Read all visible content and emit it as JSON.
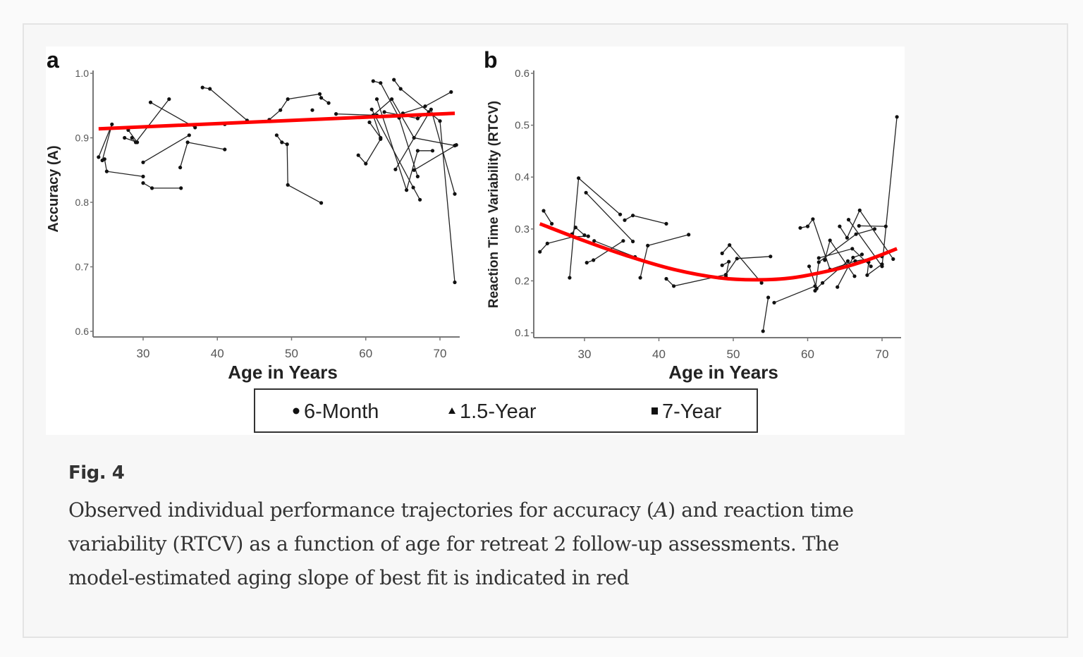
{
  "caption": {
    "title": "Fig. 4",
    "text_parts": [
      "Observed individual performance trajectories for accuracy (",
      "A",
      ") and reaction time variability (RTCV) as a function of age for retreat 2 follow-up assessments. The model-estimated aging slope of best fit is indicated in red"
    ]
  },
  "legend": {
    "items": [
      {
        "marker": "circle",
        "label": "6-Month"
      },
      {
        "marker": "triangle",
        "label": "1.5-Year"
      },
      {
        "marker": "square",
        "label": "7-Year"
      }
    ]
  },
  "colors": {
    "fit": "#ff0000",
    "trajectory": "#222222",
    "axis": "#777777"
  },
  "chart_data": [
    {
      "type": "line",
      "panel_label": "a",
      "title": "",
      "xlabel": "Age in Years",
      "ylabel": "Accuracy (A)",
      "xlim": [
        23.5,
        73
      ],
      "ylim": [
        0.59,
        1.0
      ],
      "xticks": [
        30,
        40,
        50,
        60,
        70
      ],
      "yticks": [
        0.6,
        0.7,
        0.8,
        0.9,
        1.0
      ],
      "ytick_labels": [
        "0.6",
        "0.7",
        "0.8",
        "0.9",
        "1.0"
      ],
      "grid": false,
      "fit_line": {
        "x": [
          24,
          72
        ],
        "y": [
          0.914,
          0.938
        ]
      },
      "trajectories": [
        {
          "x": [
            24.5,
            25.8,
            24.0
          ],
          "y": [
            0.865,
            0.921,
            0.87
          ]
        },
        {
          "x": [
            24.8,
            25.1,
            30.0
          ],
          "y": [
            0.867,
            0.848,
            0.84
          ]
        },
        {
          "x": [
            30.0,
            31.2,
            35.1
          ],
          "y": [
            0.83,
            0.822,
            0.822
          ]
        },
        {
          "x": [
            28.0,
            29.2,
            27.5
          ],
          "y": [
            0.912,
            0.893,
            0.9
          ]
        },
        {
          "x": [
            28.5,
            29.0,
            33.5
          ],
          "y": [
            0.9,
            0.893,
            0.96
          ]
        },
        {
          "x": [
            31.0,
            37.0
          ],
          "y": [
            0.955,
            0.916
          ]
        },
        {
          "x": [
            30.0,
            36.2
          ],
          "y": [
            0.862,
            0.904
          ]
        },
        {
          "x": [
            35.0,
            36.0,
            41.0
          ],
          "y": [
            0.854,
            0.893,
            0.882
          ]
        },
        {
          "x": [
            38.0,
            39.0,
            44.0
          ],
          "y": [
            0.978,
            0.976,
            0.927
          ]
        },
        {
          "x": [
            41.0
          ],
          "y": [
            0.921
          ]
        },
        {
          "x": [
            47.0,
            48.5,
            49.5,
            53.8,
            54.0,
            55.0
          ],
          "y": [
            0.928,
            0.943,
            0.96,
            0.968,
            0.962,
            0.954
          ]
        },
        {
          "x": [
            52.8
          ],
          "y": [
            0.943
          ]
        },
        {
          "x": [
            48.0,
            48.7,
            49.4,
            49.5,
            54.0
          ],
          "y": [
            0.904,
            0.893,
            0.89,
            0.827,
            0.799
          ]
        },
        {
          "x": [
            56.0,
            61.5
          ],
          "y": [
            0.937,
            0.935
          ]
        },
        {
          "x": [
            59.0,
            60.0,
            62.0
          ],
          "y": [
            0.873,
            0.86,
            0.898
          ]
        },
        {
          "x": [
            60.5,
            62.0,
            61.0,
            63.5,
            66.5,
            72.0
          ],
          "y": [
            0.924,
            0.9,
            0.935,
            0.96,
            0.9,
            0.888
          ]
        },
        {
          "x": [
            61.0,
            62.0,
            64.5,
            67.0
          ],
          "y": [
            0.988,
            0.985,
            0.931,
            0.84
          ]
        },
        {
          "x": [
            61.5,
            65.5,
            67.0,
            69.0
          ],
          "y": [
            0.96,
            0.819,
            0.88,
            0.88
          ]
        },
        {
          "x": [
            63.8,
            64.7,
            70.0,
            72.0
          ],
          "y": [
            0.99,
            0.976,
            0.926,
            0.676
          ]
        },
        {
          "x": [
            65.0,
            68.0,
            71.5
          ],
          "y": [
            0.938,
            0.949,
            0.971
          ]
        },
        {
          "x": [
            60.8,
            66.4,
            67.3
          ],
          "y": [
            0.944,
            0.823,
            0.804
          ]
        },
        {
          "x": [
            64.0,
            68.8,
            72.0
          ],
          "y": [
            0.851,
            0.944,
            0.813
          ]
        },
        {
          "x": [
            62.5,
            67.0,
            68.5
          ],
          "y": [
            0.94,
            0.93,
            0.94
          ]
        },
        {
          "x": [
            66.5,
            72.2
          ],
          "y": [
            0.85,
            0.889
          ]
        }
      ]
    },
    {
      "type": "line",
      "panel_label": "b",
      "title": "",
      "xlabel": "Age in Years",
      "ylabel": "Reaction Time Variability (RTCV)",
      "xlim": [
        23.5,
        72.5
      ],
      "ylim": [
        0.09,
        0.6
      ],
      "xticks": [
        30,
        40,
        50,
        60,
        70
      ],
      "yticks": [
        0.1,
        0.2,
        0.3,
        0.4,
        0.5,
        0.6
      ],
      "ytick_labels": [
        "0.1",
        "0.2",
        "0.3",
        "0.4",
        "0.5",
        "0.6"
      ],
      "grid": false,
      "fit_curve": {
        "x": [
          24,
          30,
          36,
          42,
          48,
          53,
          58,
          64,
          68,
          72
        ],
        "y": [
          0.31,
          0.277,
          0.247,
          0.222,
          0.206,
          0.202,
          0.206,
          0.223,
          0.24,
          0.262
        ]
      },
      "trajectories": [
        {
          "x": [
            24.0,
            25.0,
            28.5,
            30.5
          ],
          "y": [
            0.256,
            0.272,
            0.285,
            0.286
          ]
        },
        {
          "x": [
            24.5,
            25.6
          ],
          "y": [
            0.335,
            0.31
          ]
        },
        {
          "x": [
            28.3,
            28.8,
            30.0
          ],
          "y": [
            0.29,
            0.303,
            0.288
          ]
        },
        {
          "x": [
            28.0,
            29.2,
            34.8
          ],
          "y": [
            0.206,
            0.398,
            0.328
          ]
        },
        {
          "x": [
            30.2,
            36.5
          ],
          "y": [
            0.37,
            0.276
          ]
        },
        {
          "x": [
            30.3,
            31.2,
            35.2
          ],
          "y": [
            0.235,
            0.24,
            0.277
          ]
        },
        {
          "x": [
            31.3,
            36.8
          ],
          "y": [
            0.277,
            0.246
          ]
        },
        {
          "x": [
            35.4,
            36.5,
            41.0
          ],
          "y": [
            0.317,
            0.326,
            0.31
          ]
        },
        {
          "x": [
            37.5,
            38.5,
            44.0
          ],
          "y": [
            0.206,
            0.268,
            0.289
          ]
        },
        {
          "x": [
            41.0,
            42.0,
            49.0,
            50.5,
            55.0
          ],
          "y": [
            0.204,
            0.19,
            0.212,
            0.243,
            0.247
          ]
        },
        {
          "x": [
            48.5,
            49.5,
            53.8
          ],
          "y": [
            0.253,
            0.269,
            0.196
          ]
        },
        {
          "x": [
            48.5,
            49.4,
            49.0
          ],
          "y": [
            0.23,
            0.237,
            0.208
          ]
        },
        {
          "x": [
            54.0,
            54.7
          ],
          "y": [
            0.103,
            0.168
          ]
        },
        {
          "x": [
            55.5,
            61.0
          ],
          "y": [
            0.158,
            0.19
          ]
        },
        {
          "x": [
            59.0,
            60.0,
            60.7,
            63.0,
            66.4,
            70.0
          ],
          "y": [
            0.302,
            0.305,
            0.319,
            0.222,
            0.238,
            0.247
          ]
        },
        {
          "x": [
            61.0,
            61.5,
            66.5,
            69.0
          ],
          "y": [
            0.181,
            0.236,
            0.29,
            0.3
          ]
        },
        {
          "x": [
            60.2,
            61.2,
            62.0,
            65.4
          ],
          "y": [
            0.228,
            0.185,
            0.196,
            0.238
          ]
        },
        {
          "x": [
            64.3,
            65.3,
            67.0,
            71.5
          ],
          "y": [
            0.305,
            0.283,
            0.336,
            0.242
          ]
        },
        {
          "x": [
            62.3,
            63.0,
            66.3
          ],
          "y": [
            0.24,
            0.278,
            0.209
          ]
        },
        {
          "x": [
            61.5,
            66.0,
            68.5
          ],
          "y": [
            0.244,
            0.262,
            0.228
          ]
        },
        {
          "x": [
            64.0,
            66.1,
            67.3
          ],
          "y": [
            0.188,
            0.245,
            0.251
          ]
        },
        {
          "x": [
            65.5,
            70.0,
            72.0
          ],
          "y": [
            0.318,
            0.228,
            0.516
          ]
        },
        {
          "x": [
            66.9,
            70.5
          ],
          "y": [
            0.306,
            0.305
          ]
        },
        {
          "x": [
            68.2,
            68.0,
            70.0
          ],
          "y": [
            0.236,
            0.211,
            0.232
          ]
        }
      ]
    }
  ]
}
